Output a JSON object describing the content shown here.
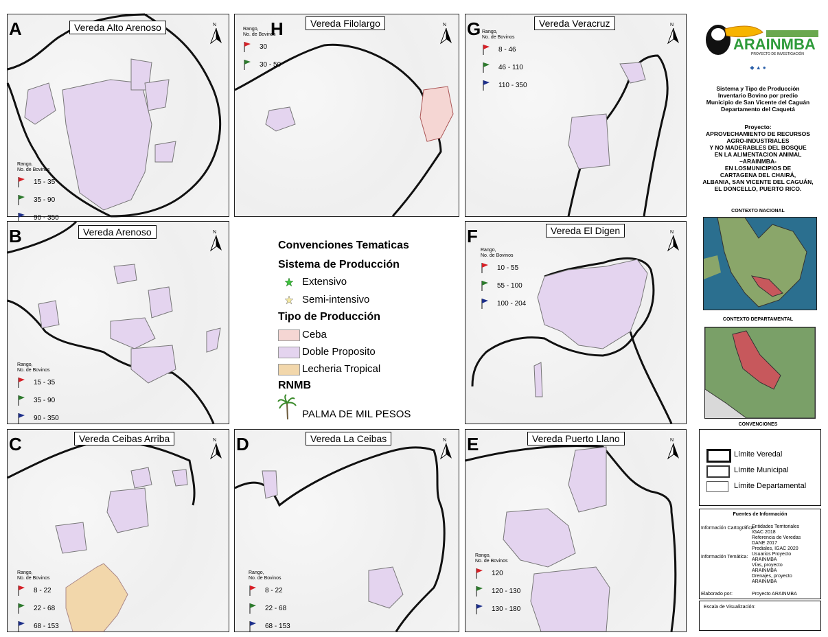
{
  "panels": [
    {
      "id": "A",
      "title": "Vereda Alto Arenoso",
      "legend": {
        "title": [
          "Rango,",
          "No. de Bovinos"
        ],
        "items": [
          "15 - 35",
          "35 - 90",
          "90 - 350"
        ]
      }
    },
    {
      "id": "H",
      "title": "Vereda Filolargo",
      "legend": {
        "title": [
          "Rango,",
          "No. de Bovinos"
        ],
        "items": [
          "30",
          "30 - 50"
        ]
      }
    },
    {
      "id": "G",
      "title": "Vereda Veracruz",
      "legend": {
        "title": [
          "Rango,",
          "No. de Bovinos"
        ],
        "items": [
          "8 - 46",
          "46 - 110",
          "110 - 350"
        ]
      }
    },
    {
      "id": "B",
      "title": "Vereda Arenoso",
      "legend": {
        "title": [
          "Rango,",
          "No. de Bovinos"
        ],
        "items": [
          "15 - 35",
          "35 - 90",
          "90 - 350"
        ]
      }
    },
    {
      "id": "F",
      "title": "Vereda El Digen",
      "legend": {
        "title": [
          "Rango,",
          "No. de Bovinos"
        ],
        "items": [
          "10 - 55",
          "55 - 100",
          "100 - 204"
        ]
      }
    },
    {
      "id": "C",
      "title": "Vereda Ceibas Arriba",
      "legend": {
        "title": [
          "Rango,",
          "No. de Bovinos"
        ],
        "items": [
          "8 - 22",
          "22 - 68",
          "68 - 153"
        ]
      }
    },
    {
      "id": "D",
      "title": "Vereda La Ceibas",
      "legend": {
        "title": [
          "Rango,",
          "No. de Bovinos"
        ],
        "items": [
          "8 - 22",
          "22 - 68",
          "68 - 153"
        ]
      }
    },
    {
      "id": "E",
      "title": "Vereda Puerto Llano",
      "legend": {
        "title": [
          "Rango,",
          "No. de Bovinos"
        ],
        "items": [
          "120",
          "120 - 130",
          "130 - 180"
        ]
      }
    }
  ],
  "north_label": "N",
  "convenciones": {
    "heading": "Convenciones Tematicas",
    "sistema": {
      "heading": "Sistema de Producción",
      "items": [
        "Extensivo",
        "Semi-intensivo"
      ]
    },
    "tipo": {
      "heading": "Tipo de Producción",
      "items": [
        {
          "label": "Ceba",
          "color": "#f5d6d3"
        },
        {
          "label": "Doble Proposito",
          "color": "#e4d4ef"
        },
        {
          "label": "Lecheria Tropical",
          "color": "#f2d7ab"
        }
      ]
    },
    "rnmb": {
      "heading": "RNMB",
      "item": "PALMA DE MIL PESOS"
    }
  },
  "logo": {
    "name": "ARAINMBA",
    "subtitle": "PROYECTO DE INVESTIGACIÓN"
  },
  "info_title": [
    "Sistema y Tipo de Producción",
    "Inventario Bovino por predio",
    "Municipio de San Vicente del Caguán",
    "Departamento del Caquetá"
  ],
  "project": [
    "Proyecto:",
    "APROVECHAMIENTO DE RECURSOS",
    "AGRO-INDUSTRIALES",
    "Y NO MADERABLES DEL BOSQUE",
    "EN LA ALIMENTACION ANIMAL",
    "–ARAINMBA-",
    "EN LOSMUNICIPIOS DE",
    "CARTAGENA DEL CHAIRÁ,",
    "ALBANIA, SAN VICENTE DEL CAGUÁN,",
    "EL DONCELLO, PUERTO RICO."
  ],
  "contexto_nacional": "CONTEXTO NACIONAL",
  "contexto_departamental": "CONTEXTO DEPARTAMENTAL",
  "convenciones_label": "CONVENCIONES",
  "limites": [
    "Límite Veredal",
    "Límite Municipal",
    "Límite Departamental"
  ],
  "fuentes": {
    "title": "Fuentes de Información",
    "rows": [
      {
        "label": "Información Cartográfica:",
        "lines": [
          "Entidades Territoriales",
          "IGAC 2018",
          "Referencia de Veredas",
          "DANE 2017",
          "Prediales, IGAC 2020"
        ]
      },
      {
        "label": "Información Temática:",
        "lines": [
          "Usuarios Proyecto",
          "ARAINMBA",
          "Vías, proyecto",
          "ARAINMBA",
          "Drenajes, proyecto",
          "ARAINMBA"
        ]
      },
      {
        "label": "Elaborado por:",
        "lines": [
          "Proyecto ARAINMBA"
        ]
      }
    ]
  },
  "escala": "Escala de Visualización:",
  "colors": {
    "double": "#e4d4ef",
    "ceba": "#f5d6d3",
    "lecheria": "#f2d7ab",
    "flag_red": "#d62027",
    "flag_green": "#2d7a2d",
    "flag_blue": "#1d2f8a",
    "star": "#3ec43e"
  }
}
